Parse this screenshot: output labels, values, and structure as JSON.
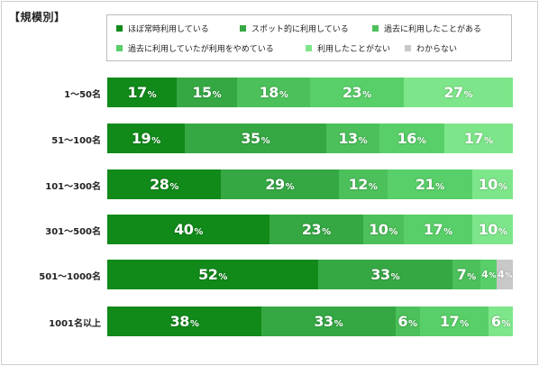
{
  "title": "【規模別】",
  "chart_data": {
    "type": "bar",
    "orientation": "horizontal",
    "stacked": true,
    "normalized": true,
    "categories": [
      "1～50名",
      "51～100名",
      "101～300名",
      "301～500名",
      "501～1000名",
      "1001名以上"
    ],
    "series": [
      {
        "name": "ほぼ常時利用している",
        "color": "#118a1a",
        "values": [
          17,
          19,
          28,
          40,
          52,
          38
        ]
      },
      {
        "name": "スポット的に利用している",
        "color": "#35a843",
        "values": [
          15,
          35,
          29,
          23,
          33,
          33
        ]
      },
      {
        "name": "過去に利用したことがある",
        "color": "#4cc05a",
        "values": [
          18,
          13,
          12,
          10,
          7,
          6
        ]
      },
      {
        "name": "過去に利用していたが利用をやめている",
        "color": "#58cf68",
        "values": [
          23,
          16,
          21,
          17,
          4,
          17
        ]
      },
      {
        "name": "利用したことがない",
        "color": "#7ee68a",
        "values": [
          27,
          17,
          10,
          10,
          0,
          6
        ]
      },
      {
        "name": "わからない",
        "color": "#c8c8c8",
        "values": [
          0,
          0,
          0,
          0,
          4,
          0
        ]
      }
    ],
    "display_labels": [
      [
        "17",
        "15",
        "18",
        "23",
        "27",
        ""
      ],
      [
        "19",
        "35",
        "13",
        "16",
        "17",
        ""
      ],
      [
        "28",
        "29",
        "12",
        "21",
        "10",
        ""
      ],
      [
        "40",
        "23",
        "10",
        "17",
        "10",
        ""
      ],
      [
        "52",
        "33",
        "7",
        "4",
        "",
        "4"
      ],
      [
        "38",
        "33",
        "6",
        "17",
        "6",
        ""
      ]
    ],
    "unit_label": "%",
    "legend_position": "top"
  }
}
